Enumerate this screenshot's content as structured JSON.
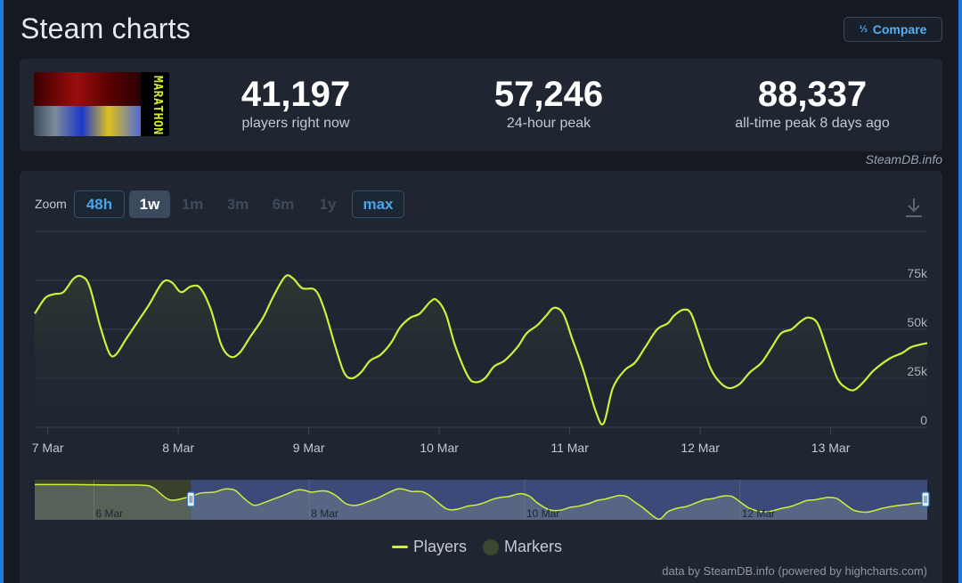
{
  "page": {
    "title": "Steam charts",
    "compare_label": "Compare",
    "compare_icon": "1/3",
    "credit": "SteamDB.info"
  },
  "game": {
    "logo_text": "MARATHON"
  },
  "stats": [
    {
      "value": "41,197",
      "label": "players right now"
    },
    {
      "value": "57,246",
      "label": "24-hour peak"
    },
    {
      "value": "88,337",
      "label": "all-time peak 8 days ago"
    }
  ],
  "zoom": {
    "label": "Zoom",
    "options": [
      {
        "label": "48h",
        "state": "available"
      },
      {
        "label": "1w",
        "state": "selected"
      },
      {
        "label": "1m",
        "state": "disabled"
      },
      {
        "label": "3m",
        "state": "disabled"
      },
      {
        "label": "6m",
        "state": "disabled"
      },
      {
        "label": "1y",
        "state": "disabled"
      },
      {
        "label": "max",
        "state": "available"
      }
    ]
  },
  "legend": {
    "players": "Players",
    "markers": "Markers"
  },
  "footer": {
    "credit": "data by SteamDB.info (powered by highcharts.com)"
  },
  "colors": {
    "line": "#cdf03c",
    "accent": "#4aa5e8",
    "navigator_selected": "#3b4a78",
    "navigator_outside": "#39402c"
  },
  "chart_data": {
    "type": "line",
    "xlabels": [
      "7 Mar",
      "8 Mar",
      "9 Mar",
      "10 Mar",
      "11 Mar",
      "12 Mar",
      "13 Mar"
    ],
    "ytick_labels": [
      "0",
      "25k",
      "50k",
      "75k"
    ],
    "ylim": [
      0,
      100000
    ],
    "xlim": [
      6.9,
      13.74
    ],
    "grid": true,
    "legend_position": "bottom",
    "series": [
      {
        "name": "Players",
        "points": [
          [
            6.9,
            58000
          ],
          [
            6.98,
            66000
          ],
          [
            7.05,
            68000
          ],
          [
            7.12,
            69000
          ],
          [
            7.2,
            76000
          ],
          [
            7.26,
            77000
          ],
          [
            7.32,
            72000
          ],
          [
            7.4,
            52000
          ],
          [
            7.47,
            38000
          ],
          [
            7.52,
            37000
          ],
          [
            7.6,
            45000
          ],
          [
            7.7,
            55000
          ],
          [
            7.78,
            63000
          ],
          [
            7.88,
            74000
          ],
          [
            7.95,
            74000
          ],
          [
            8.02,
            69000
          ],
          [
            8.1,
            72000
          ],
          [
            8.17,
            71000
          ],
          [
            8.25,
            60000
          ],
          [
            8.33,
            42000
          ],
          [
            8.4,
            36000
          ],
          [
            8.47,
            38000
          ],
          [
            8.55,
            46000
          ],
          [
            8.65,
            56000
          ],
          [
            8.73,
            67000
          ],
          [
            8.82,
            77000
          ],
          [
            8.88,
            76000
          ],
          [
            8.95,
            71000
          ],
          [
            9.05,
            70000
          ],
          [
            9.12,
            60000
          ],
          [
            9.2,
            42000
          ],
          [
            9.27,
            28000
          ],
          [
            9.33,
            25000
          ],
          [
            9.4,
            28000
          ],
          [
            9.47,
            34000
          ],
          [
            9.55,
            37000
          ],
          [
            9.63,
            43000
          ],
          [
            9.7,
            51000
          ],
          [
            9.78,
            56000
          ],
          [
            9.85,
            58000
          ],
          [
            9.93,
            64000
          ],
          [
            9.98,
            65000
          ],
          [
            10.05,
            58000
          ],
          [
            10.12,
            42000
          ],
          [
            10.22,
            26000
          ],
          [
            10.28,
            23000
          ],
          [
            10.35,
            25000
          ],
          [
            10.42,
            31000
          ],
          [
            10.5,
            34000
          ],
          [
            10.6,
            41000
          ],
          [
            10.67,
            48000
          ],
          [
            10.75,
            52000
          ],
          [
            10.82,
            57000
          ],
          [
            10.88,
            61000
          ],
          [
            10.95,
            58000
          ],
          [
            11.02,
            45000
          ],
          [
            11.1,
            30000
          ],
          [
            11.2,
            8000
          ],
          [
            11.26,
            2000
          ],
          [
            11.33,
            20000
          ],
          [
            11.42,
            29000
          ],
          [
            11.5,
            33000
          ],
          [
            11.58,
            41000
          ],
          [
            11.67,
            50000
          ],
          [
            11.75,
            53000
          ],
          [
            11.8,
            57000
          ],
          [
            11.87,
            60000
          ],
          [
            11.93,
            58000
          ],
          [
            12.0,
            45000
          ],
          [
            12.08,
            30000
          ],
          [
            12.15,
            23000
          ],
          [
            12.22,
            20000
          ],
          [
            12.3,
            22000
          ],
          [
            12.38,
            28000
          ],
          [
            12.47,
            33000
          ],
          [
            12.55,
            41000
          ],
          [
            12.62,
            48000
          ],
          [
            12.7,
            50000
          ],
          [
            12.77,
            54000
          ],
          [
            12.83,
            56000
          ],
          [
            12.9,
            53000
          ],
          [
            12.97,
            40000
          ],
          [
            13.05,
            25000
          ],
          [
            13.12,
            20000
          ],
          [
            13.18,
            19000
          ],
          [
            13.25,
            23000
          ],
          [
            13.33,
            29000
          ],
          [
            13.45,
            35000
          ],
          [
            13.55,
            38000
          ],
          [
            13.62,
            41000
          ],
          [
            13.74,
            43000
          ]
        ]
      }
    ],
    "navigator": {
      "xlabels": [
        "6 Mar",
        "8 Mar",
        "10 Mar",
        "12 Mar"
      ],
      "flat_level": 88000
    }
  }
}
